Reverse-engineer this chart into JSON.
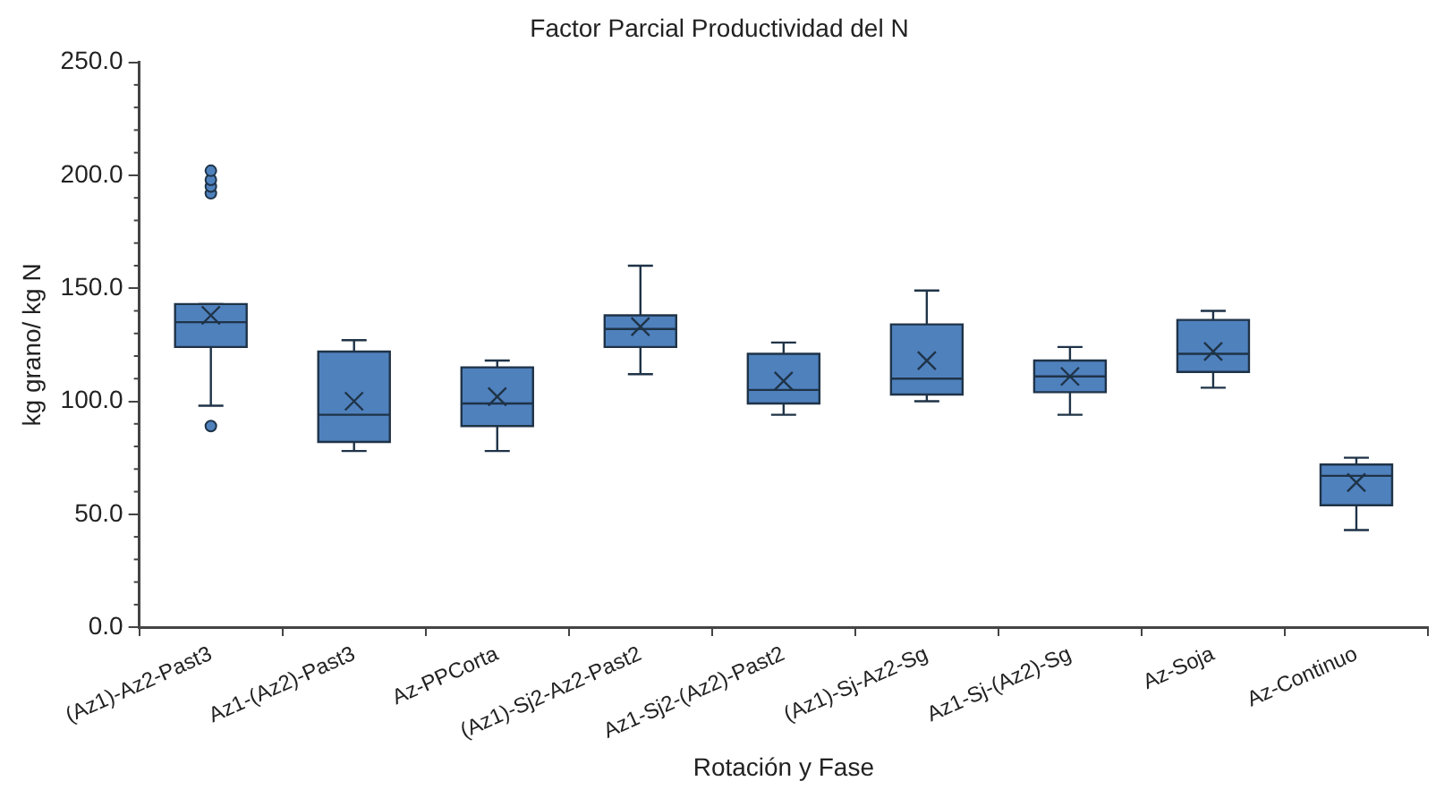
{
  "chart_data": {
    "type": "box",
    "title": "Factor Parcial Productividad del N",
    "xlabel": "Rotación y Fase",
    "ylabel": "kg grano/ kg N",
    "categories": [
      "(Az1)-Az2-Past3",
      "Az1-(Az2)-Past3",
      "Az-PPCorta",
      "(Az1)-Sj2-Az2-Past2",
      "Az1-Sj2-(Az2)-Past2",
      "(Az1)-Sj-Az2-Sg",
      "Az1-Sj-(Az2)-Sg",
      "Az-Soja",
      "Az-Continuo"
    ],
    "color": "#4f81bd",
    "boxes": [
      {
        "low": 98,
        "q1": 124,
        "median": 135,
        "q3": 143,
        "high": 143,
        "mean": 138,
        "outliers": [
          89,
          192,
          195,
          198,
          202
        ]
      },
      {
        "low": 78,
        "q1": 82,
        "median": 94,
        "q3": 122,
        "high": 127,
        "mean": 100
      },
      {
        "low": 78,
        "q1": 89,
        "median": 99,
        "q3": 115,
        "high": 118,
        "mean": 102
      },
      {
        "low": 112,
        "q1": 124,
        "median": 132,
        "q3": 138,
        "high": 160,
        "mean": 133
      },
      {
        "low": 94,
        "q1": 99,
        "median": 105,
        "q3": 121,
        "high": 126,
        "mean": 109
      },
      {
        "low": 100,
        "q1": 103,
        "median": 110,
        "q3": 134,
        "high": 149,
        "mean": 118
      },
      {
        "low": 94,
        "q1": 104,
        "median": 111,
        "q3": 118,
        "high": 124,
        "mean": 111
      },
      {
        "low": 106,
        "q1": 113,
        "median": 121,
        "q3": 136,
        "high": 140,
        "mean": 122
      },
      {
        "low": 43,
        "q1": 54,
        "median": 67,
        "q3": 72,
        "high": 75,
        "mean": 64
      }
    ],
    "ylim": [
      0,
      250
    ],
    "yticks": [
      {
        "value": 0,
        "label": "0.0"
      },
      {
        "value": 50,
        "label": "50.0"
      },
      {
        "value": 100,
        "label": "100.0"
      },
      {
        "value": 150,
        "label": "150.0"
      },
      {
        "value": 200,
        "label": "200.0"
      },
      {
        "value": 250,
        "label": "250.0"
      }
    ],
    "grid": false,
    "legend": false
  }
}
